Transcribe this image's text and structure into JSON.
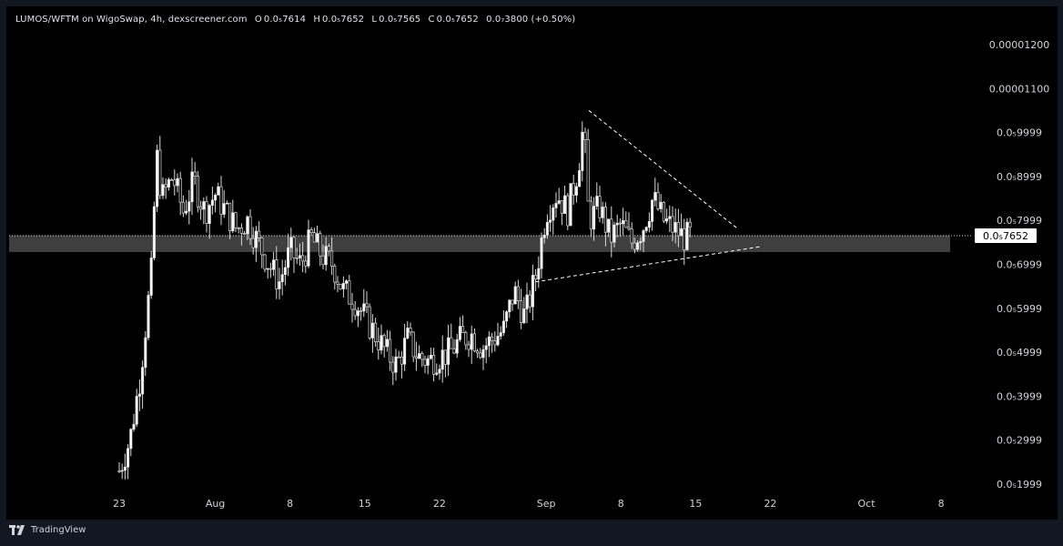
{
  "header": {
    "symbol": "LUMOS/WFTM on WigoSwap, 4h, dexscreener.com",
    "o_label": "O",
    "o_value": "0.0₅7614",
    "h_label": "H",
    "h_value": "0.0₅7652",
    "l_label": "L",
    "l_value": "0.0₅7565",
    "c_label": "C",
    "c_value": "0.0₅7652",
    "change": "0.0₇3800 (+0.50%)"
  },
  "footer": {
    "brand": "TradingView"
  },
  "colors": {
    "background": "#000000",
    "frame": "#131722",
    "candle": "#d9d9d9",
    "zone": "#4a4a4a",
    "price_label_bg": "#ffffff",
    "price_label_text": "#000000"
  },
  "chart_data": {
    "type": "candlestick",
    "title": "",
    "xlabel": "",
    "ylabel": "",
    "y_axis_ticks": [
      {
        "label": "0.00001200",
        "value": 1.2e-05
      },
      {
        "label": "0.00001100",
        "value": 1.1e-05
      },
      {
        "label": "0.0₅9999",
        "value": 9.999e-06
      },
      {
        "label": "0.0₅8999",
        "value": 8.999e-06
      },
      {
        "label": "0.0₅7999",
        "value": 7.999e-06
      },
      {
        "label": "0.0₅6999",
        "value": 6.999e-06
      },
      {
        "label": "0.0₅5999",
        "value": 5.999e-06
      },
      {
        "label": "0.0₅4999",
        "value": 4.999e-06
      },
      {
        "label": "0.0₅3999",
        "value": 3.999e-06
      },
      {
        "label": "0.0₅2999",
        "value": 2.999e-06
      },
      {
        "label": "0.0₅1999",
        "value": 1.999e-06
      }
    ],
    "x_axis_ticks": [
      {
        "label": "23",
        "date": "2024-07-23"
      },
      {
        "label": "Aug",
        "date": "2024-08-01"
      },
      {
        "label": "8",
        "date": "2024-08-08"
      },
      {
        "label": "15",
        "date": "2024-08-15"
      },
      {
        "label": "22",
        "date": "2024-08-22"
      },
      {
        "label": "Sep",
        "date": "2024-09-01"
      },
      {
        "label": "8",
        "date": "2024-09-08"
      },
      {
        "label": "15",
        "date": "2024-09-15"
      },
      {
        "label": "22",
        "date": "2024-09-22"
      },
      {
        "label": "Oct",
        "date": "2024-10-01"
      },
      {
        "label": "8",
        "date": "2024-10-08"
      }
    ],
    "ylim": [
      1.8e-06,
      1.24e-05
    ],
    "xlim": [
      "2024-07-12",
      "2024-10-10"
    ],
    "current_price": {
      "label": "0.0₅7652",
      "value": 7.652e-06
    },
    "path": [
      [
        "2024-07-23",
        2.3e-06
      ],
      [
        "2024-07-24",
        3e-06
      ],
      [
        "2024-07-25",
        4.5e-06
      ],
      [
        "2024-07-26",
        6.8e-06
      ],
      [
        "2024-07-26T12",
        9.5e-06
      ],
      [
        "2024-07-27",
        8.5e-06
      ],
      [
        "2024-07-28",
        9e-06
      ],
      [
        "2024-07-29",
        8.2e-06
      ],
      [
        "2024-07-30",
        8.9e-06
      ],
      [
        "2024-07-31",
        8.2e-06
      ],
      [
        "2024-08-01",
        8.6e-06
      ],
      [
        "2024-08-02",
        8.2e-06
      ],
      [
        "2024-08-03",
        7.8e-06
      ],
      [
        "2024-08-04",
        8e-06
      ],
      [
        "2024-08-05",
        7.5e-06
      ],
      [
        "2024-08-06",
        7e-06
      ],
      [
        "2024-08-07",
        6.6e-06
      ],
      [
        "2024-08-08",
        7.3e-06
      ],
      [
        "2024-08-09",
        7e-06
      ],
      [
        "2024-08-10",
        7.6e-06
      ],
      [
        "2024-08-11",
        7.2e-06
      ],
      [
        "2024-08-12",
        7e-06
      ],
      [
        "2024-08-13",
        6.4e-06
      ],
      [
        "2024-08-14",
        6.2e-06
      ],
      [
        "2024-08-15",
        5.8e-06
      ],
      [
        "2024-08-16",
        5.4e-06
      ],
      [
        "2024-08-17",
        5e-06
      ],
      [
        "2024-08-18",
        4.7e-06
      ],
      [
        "2024-08-19",
        5.3e-06
      ],
      [
        "2024-08-20",
        4.9e-06
      ],
      [
        "2024-08-21",
        4.8e-06
      ],
      [
        "2024-08-22",
        4.9e-06
      ],
      [
        "2024-08-23",
        5e-06
      ],
      [
        "2024-08-24",
        5.3e-06
      ],
      [
        "2024-08-25",
        5.4e-06
      ],
      [
        "2024-08-26",
        5.1e-06
      ],
      [
        "2024-08-27",
        5.3e-06
      ],
      [
        "2024-08-28",
        5.5e-06
      ],
      [
        "2024-08-29",
        6.4e-06
      ],
      [
        "2024-08-30",
        5.8e-06
      ],
      [
        "2024-08-31",
        6.7e-06
      ],
      [
        "2024-09-01",
        8.2e-06
      ],
      [
        "2024-09-02",
        8.6e-06
      ],
      [
        "2024-09-03",
        8.2e-06
      ],
      [
        "2024-09-04",
        9.2e-06
      ],
      [
        "2024-09-04T12",
        1.02e-05
      ],
      [
        "2024-09-05",
        8e-06
      ],
      [
        "2024-09-06",
        8.3e-06
      ],
      [
        "2024-09-07",
        7.6e-06
      ],
      [
        "2024-09-08",
        7.9e-06
      ],
      [
        "2024-09-09",
        7.5e-06
      ],
      [
        "2024-09-10",
        7.8e-06
      ],
      [
        "2024-09-11",
        8.5e-06
      ],
      [
        "2024-09-12",
        8e-06
      ],
      [
        "2024-09-13",
        7.8e-06
      ],
      [
        "2024-09-14",
        7.6e-06
      ],
      [
        "2024-09-14T12",
        7.65e-06
      ]
    ],
    "support_zone": {
      "low": 7.28e-06,
      "high": 7.66e-06
    },
    "trendlines": [
      {
        "name": "upper",
        "from": [
          "2024-09-05",
          1.05e-05
        ],
        "to": [
          "2024-09-19",
          7.8e-06
        ]
      },
      {
        "name": "lower",
        "from": [
          "2024-08-31",
          6.6e-06
        ],
        "to": [
          "2024-09-21",
          7.4e-06
        ]
      }
    ]
  }
}
